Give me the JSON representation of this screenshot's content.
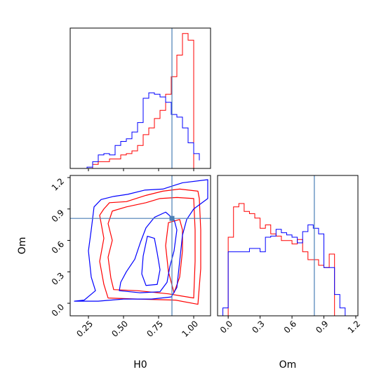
{
  "chart_data": {
    "type": "corner",
    "parameters": [
      "H0",
      "Om"
    ],
    "truth": {
      "H0": 0.845,
      "Om": 0.81,
      "color": "#4a7fb5"
    },
    "series": [
      {
        "color": "#ff0000"
      },
      {
        "color": "#0000ff"
      }
    ],
    "H0_marginal": {
      "xlim": [
        0.12,
        1.12
      ],
      "bin_edges": [
        0.16,
        0.2,
        0.24,
        0.28,
        0.32,
        0.36,
        0.4,
        0.44,
        0.48,
        0.52,
        0.56,
        0.6,
        0.64,
        0.68,
        0.72,
        0.76,
        0.8,
        0.84,
        0.88,
        0.92,
        0.96,
        1.0,
        1.04
      ],
      "red": [
        0,
        0,
        0,
        0.03,
        0.05,
        0.05,
        0.07,
        0.07,
        0.1,
        0.11,
        0.13,
        0.17,
        0.25,
        0.3,
        0.37,
        0.43,
        0.55,
        0.68,
        0.84,
        1.0,
        0.95,
        0,
        0
      ],
      "blue": [
        0,
        0,
        0.01,
        0.05,
        0.1,
        0.11,
        0.1,
        0.17,
        0.2,
        0.22,
        0.27,
        0.34,
        0.52,
        0.56,
        0.55,
        0.53,
        0.49,
        0.4,
        0.38,
        0.3,
        0.19,
        0.11,
        0.06
      ]
    },
    "Om_marginal": {
      "xlim": [
        -0.1,
        1.22
      ],
      "ticks": [
        0.0,
        0.3,
        0.6,
        0.9,
        1.2
      ],
      "tick_labels": [
        "0.0",
        "0.3",
        "0.6",
        "0.9",
        "1.2"
      ],
      "xlabel": "Om",
      "bin_edges": [
        -0.05,
        0.0,
        0.05,
        0.1,
        0.15,
        0.2,
        0.25,
        0.3,
        0.35,
        0.4,
        0.45,
        0.5,
        0.55,
        0.6,
        0.65,
        0.7,
        0.75,
        0.8,
        0.85,
        0.9,
        0.95,
        1.0,
        1.05,
        1.1
      ],
      "red": [
        0,
        0.7,
        0.97,
        1.0,
        0.93,
        0.91,
        0.87,
        0.78,
        0.81,
        0.73,
        0.71,
        0.67,
        0.67,
        0.64,
        0.68,
        0.57,
        0.5,
        0.5,
        0.45,
        0.43,
        0.55,
        0,
        0
      ],
      "blue": [
        0.07,
        0.57,
        0.57,
        0.57,
        0.57,
        0.6,
        0.6,
        0.57,
        0.7,
        0.71,
        0.77,
        0.74,
        0.72,
        0.7,
        0.65,
        0.75,
        0.81,
        0.78,
        0.73,
        0.43,
        0.43,
        0.19,
        0.07
      ]
    },
    "joint": {
      "xlim": [
        0.12,
        1.12
      ],
      "ylim": [
        -0.12,
        1.22
      ],
      "xticks": [
        0.25,
        0.5,
        0.75,
        1.0
      ],
      "xtick_labels": [
        "0.25",
        "0.50",
        "0.75",
        "1.00"
      ],
      "yticks": [
        0.0,
        0.3,
        0.6,
        0.9,
        1.2
      ],
      "ytick_labels": [
        "0.0",
        "0.3",
        "0.6",
        "0.9",
        "1.2"
      ],
      "xlabel": "H0",
      "ylabel": "Om",
      "contours": [
        {
          "series": 0,
          "points": [
            [
              0.39,
              0.05
            ],
            [
              0.6,
              0.04
            ],
            [
              0.87,
              0.03
            ],
            [
              1.03,
              -0.01
            ],
            [
              1.05,
              0.33
            ],
            [
              1.05,
              0.7
            ],
            [
              1.04,
              1.0
            ],
            [
              1.03,
              1.07
            ],
            [
              0.9,
              1.09
            ],
            [
              0.78,
              1.07
            ],
            [
              0.66,
              1.03
            ],
            [
              0.52,
              0.97
            ],
            [
              0.4,
              0.96
            ],
            [
              0.36,
              0.9
            ],
            [
              0.33,
              0.84
            ],
            [
              0.36,
              0.62
            ],
            [
              0.33,
              0.4
            ],
            [
              0.36,
              0.18
            ]
          ]
        },
        {
          "series": 0,
          "points": [
            [
              0.43,
              0.13
            ],
            [
              0.6,
              0.12
            ],
            [
              0.82,
              0.09
            ],
            [
              1.0,
              0.05
            ],
            [
              1.01,
              0.4
            ],
            [
              1.01,
              0.7
            ],
            [
              1.0,
              1.0
            ],
            [
              0.88,
              1.01
            ],
            [
              0.76,
              1.0
            ],
            [
              0.66,
              0.96
            ],
            [
              0.52,
              0.92
            ],
            [
              0.42,
              0.88
            ],
            [
              0.39,
              0.76
            ],
            [
              0.42,
              0.6
            ],
            [
              0.39,
              0.44
            ],
            [
              0.41,
              0.24
            ]
          ]
        },
        {
          "series": 0,
          "points": [
            [
              0.82,
              0.77
            ],
            [
              0.9,
              0.8
            ],
            [
              0.92,
              0.7
            ],
            [
              0.92,
              0.5
            ],
            [
              0.9,
              0.25
            ],
            [
              0.86,
              0.1
            ],
            [
              0.82,
              0.3
            ],
            [
              0.8,
              0.55
            ]
          ]
        },
        {
          "series": 1,
          "points": [
            [
              0.15,
              0.02
            ],
            [
              0.22,
              0.03
            ],
            [
              0.3,
              0.12
            ],
            [
              0.27,
              0.25
            ],
            [
              0.25,
              0.5
            ],
            [
              0.27,
              0.7
            ],
            [
              0.29,
              0.92
            ],
            [
              0.34,
              0.99
            ],
            [
              0.43,
              1.02
            ],
            [
              0.53,
              1.04
            ],
            [
              0.65,
              1.08
            ],
            [
              0.78,
              1.09
            ],
            [
              0.92,
              1.15
            ],
            [
              1.1,
              1.18
            ],
            [
              1.1,
              1.0
            ],
            [
              1.0,
              0.9
            ],
            [
              0.95,
              0.8
            ],
            [
              0.92,
              0.65
            ],
            [
              0.9,
              0.4
            ],
            [
              0.88,
              0.15
            ],
            [
              0.84,
              0.06
            ],
            [
              0.7,
              0.04
            ],
            [
              0.5,
              0.04
            ],
            [
              0.32,
              0.02
            ]
          ]
        },
        {
          "series": 1,
          "points": [
            [
              0.47,
              0.12
            ],
            [
              0.62,
              0.1
            ],
            [
              0.76,
              0.11
            ],
            [
              0.81,
              0.2
            ],
            [
              0.83,
              0.35
            ],
            [
              0.86,
              0.5
            ],
            [
              0.88,
              0.7
            ],
            [
              0.86,
              0.8
            ],
            [
              0.8,
              0.87
            ],
            [
              0.72,
              0.82
            ],
            [
              0.66,
              0.72
            ],
            [
              0.62,
              0.58
            ],
            [
              0.58,
              0.42
            ],
            [
              0.52,
              0.3
            ],
            [
              0.48,
              0.2
            ]
          ]
        },
        {
          "series": 1,
          "points": [
            [
              0.66,
              0.17
            ],
            [
              0.74,
              0.18
            ],
            [
              0.76,
              0.32
            ],
            [
              0.74,
              0.48
            ],
            [
              0.72,
              0.62
            ],
            [
              0.67,
              0.64
            ],
            [
              0.64,
              0.45
            ],
            [
              0.63,
              0.28
            ]
          ]
        }
      ]
    }
  }
}
